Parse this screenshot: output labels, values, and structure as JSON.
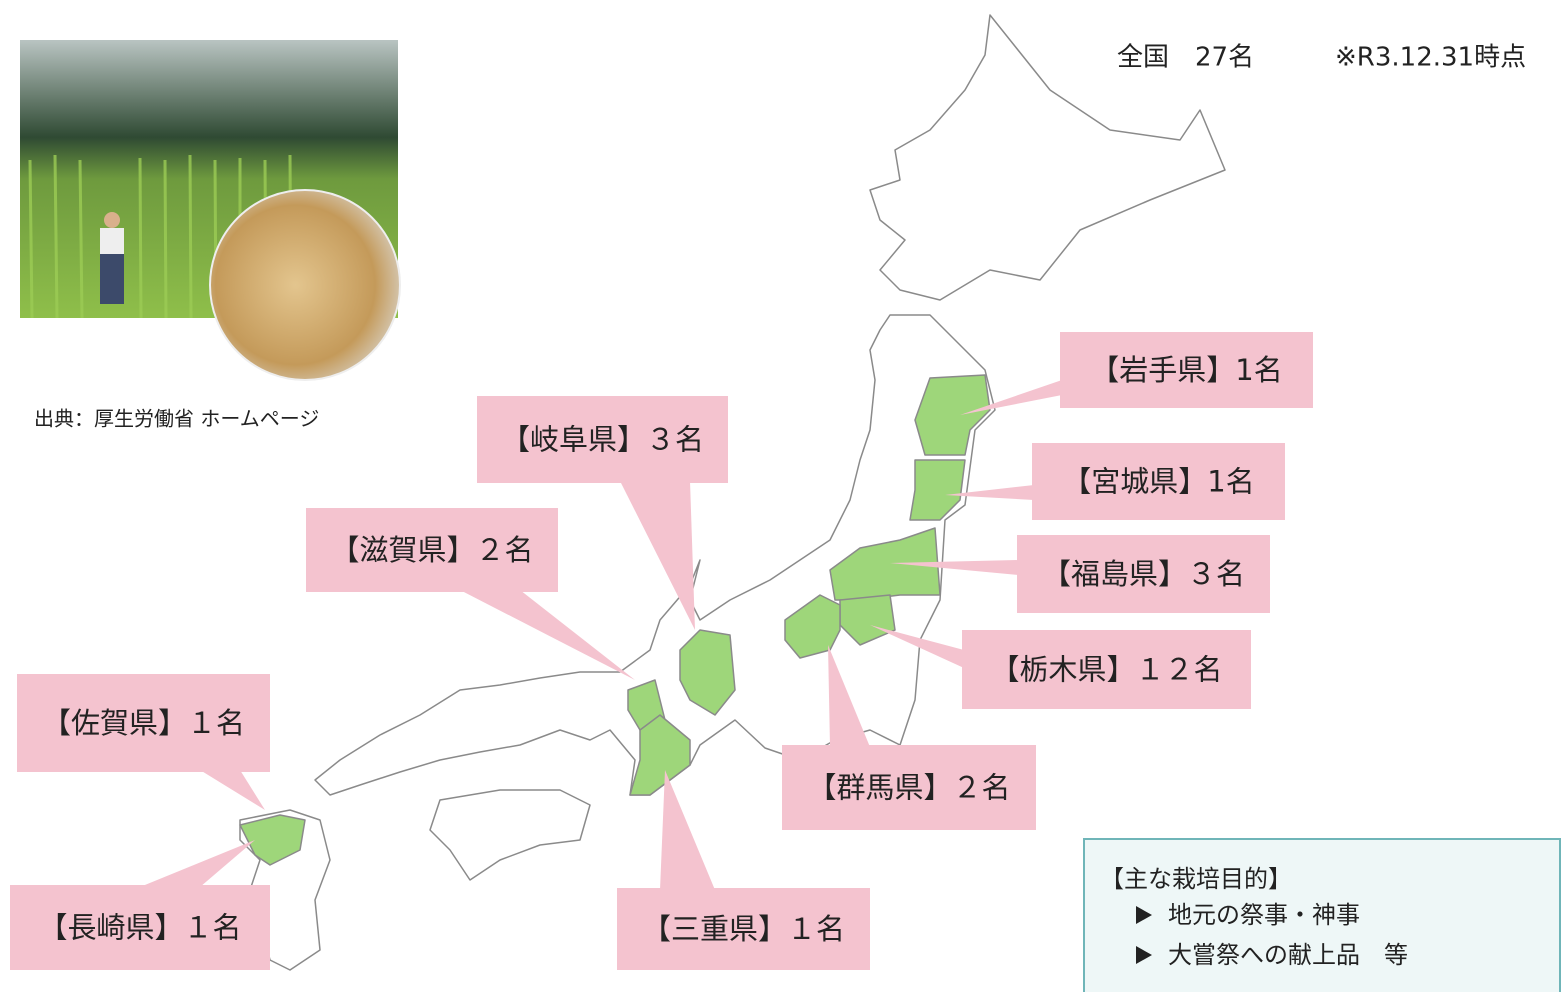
{
  "header": {
    "total": "全国　27名",
    "note": "※R3.12.31時点"
  },
  "photo": {
    "caption": "出典：厚生労働省 ホームページ"
  },
  "callouts": [
    {
      "label": "【岩手県】1名"
    },
    {
      "label": "【宮城県】1名"
    },
    {
      "label": "【福島県】３名"
    },
    {
      "label": "【栃木県】１２名"
    },
    {
      "label": "【群馬県】２名"
    },
    {
      "label": "【三重県】１名"
    },
    {
      "label": "【岐阜県】３名"
    },
    {
      "label": "【滋賀県】２名"
    },
    {
      "label": "【佐賀県】１名"
    },
    {
      "label": "【長崎県】１名"
    }
  ],
  "purpose": {
    "title": "【主な栽培目的】",
    "items": [
      "地元の祭事・神事",
      "大嘗祭への献上品　等"
    ]
  }
}
